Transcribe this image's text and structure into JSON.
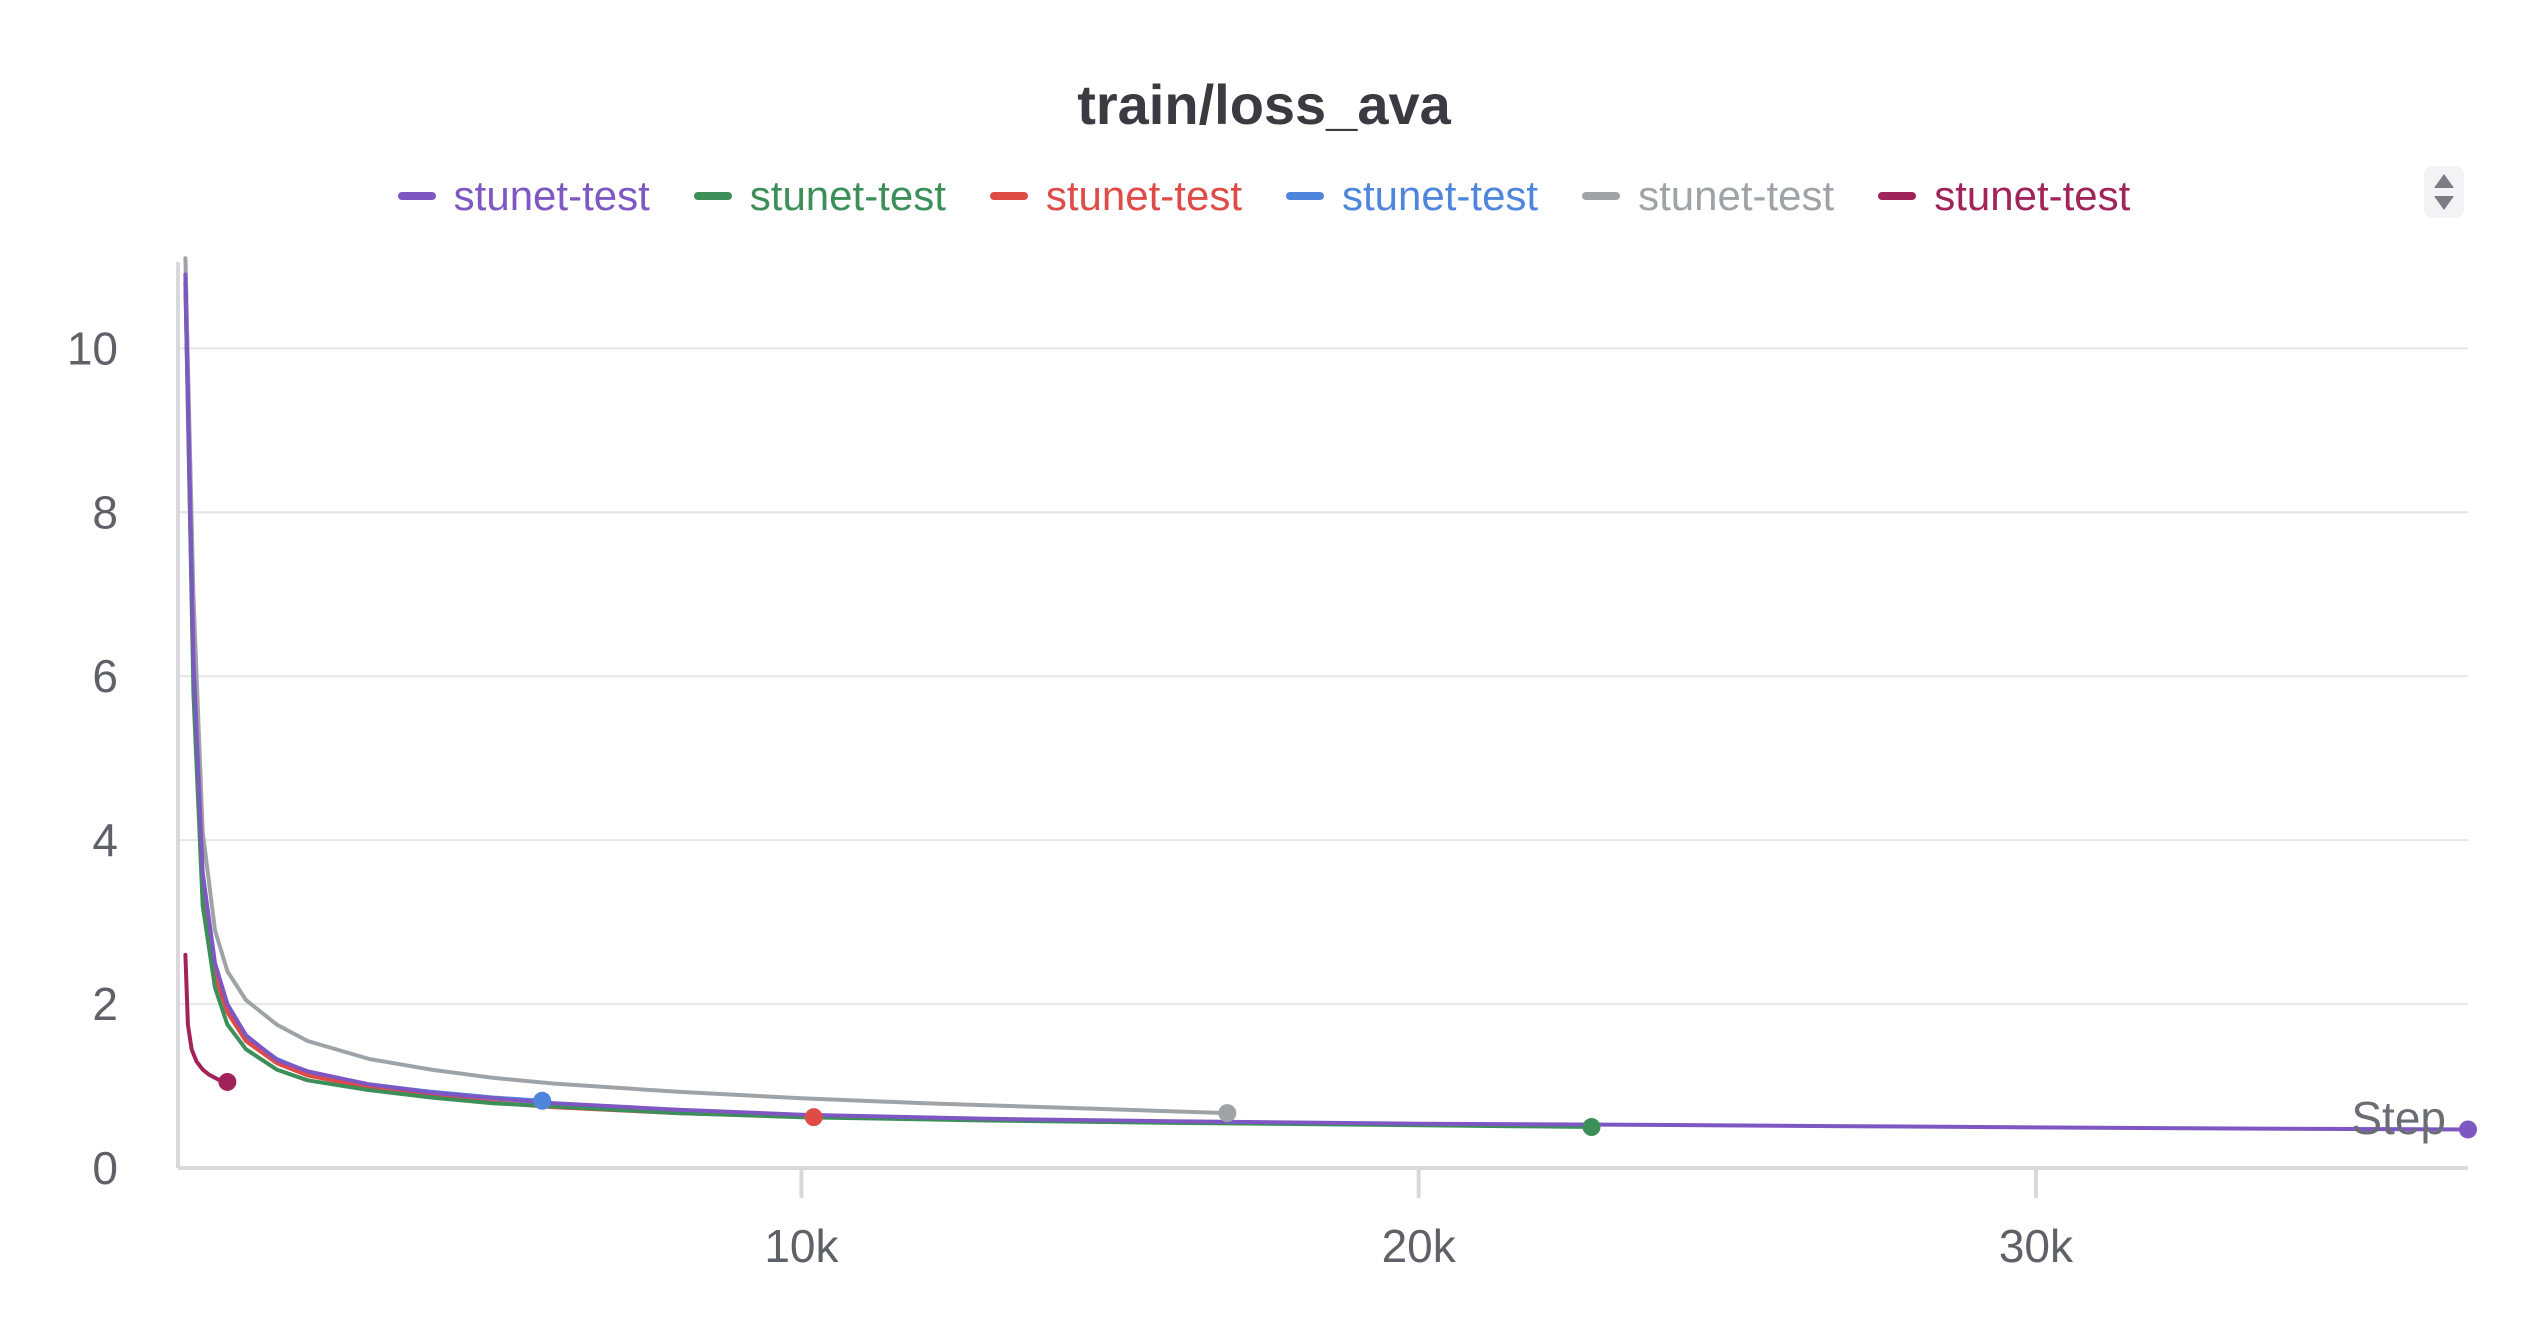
{
  "chart_data": {
    "type": "line",
    "title": "train/loss_ava",
    "xlabel": "Step",
    "ylabel": "",
    "xlim": [
      -100,
      37000
    ],
    "ylim": [
      0,
      11.2
    ],
    "x_ticks": [
      10000,
      20000,
      30000
    ],
    "x_tick_labels": [
      "10k",
      "20k",
      "30k"
    ],
    "y_ticks": [
      0,
      2,
      4,
      6,
      8,
      10
    ],
    "y_tick_labels": [
      "0",
      "2",
      "4",
      "6",
      "8",
      "10"
    ],
    "grid": true,
    "legend_position": "top",
    "series": [
      {
        "name": "stunet-test",
        "color": "#7e57c2",
        "x": [
          20,
          150,
          300,
          500,
          700,
          1000,
          1500,
          2000,
          3000,
          4000,
          5000,
          6000,
          8000,
          10000,
          13000,
          16000,
          20000,
          23000,
          27000,
          31000,
          34000,
          37000
        ],
        "y": [
          10.9,
          6.2,
          3.6,
          2.5,
          2.0,
          1.62,
          1.32,
          1.18,
          1.02,
          0.92,
          0.85,
          0.79,
          0.71,
          0.65,
          0.6,
          0.57,
          0.54,
          0.53,
          0.51,
          0.49,
          0.48,
          0.47
        ]
      },
      {
        "name": "stunet-test",
        "color": "#3c8f58",
        "x": [
          20,
          150,
          300,
          500,
          700,
          1000,
          1500,
          2000,
          3000,
          4000,
          5000,
          6000,
          8000,
          10000,
          13000,
          16000,
          19000,
          22800
        ],
        "y": [
          10.8,
          5.8,
          3.2,
          2.2,
          1.75,
          1.45,
          1.2,
          1.07,
          0.95,
          0.86,
          0.79,
          0.75,
          0.67,
          0.62,
          0.58,
          0.55,
          0.53,
          0.5
        ]
      },
      {
        "name": "stunet-test",
        "color": "#df4b47",
        "x": [
          20,
          150,
          300,
          500,
          700,
          1000,
          1500,
          2000,
          3000,
          4000,
          5000,
          6000,
          8000,
          10200
        ],
        "y": [
          10.8,
          6.0,
          3.4,
          2.35,
          1.9,
          1.55,
          1.28,
          1.13,
          0.98,
          0.88,
          0.8,
          0.74,
          0.67,
          0.62
        ]
      },
      {
        "name": "stunet-test",
        "color": "#4e86dd",
        "x": [
          20,
          150,
          300,
          500,
          700,
          1000,
          1500,
          2000,
          3000,
          4000,
          5000,
          5800
        ],
        "y": [
          10.9,
          6.1,
          3.5,
          2.45,
          1.95,
          1.6,
          1.33,
          1.17,
          1.02,
          0.93,
          0.86,
          0.82
        ]
      },
      {
        "name": "stunet-test",
        "color": "#9ea3a8",
        "x": [
          20,
          150,
          300,
          500,
          700,
          1000,
          1500,
          2000,
          3000,
          4000,
          5000,
          6000,
          8000,
          10000,
          12000,
          14000,
          16900
        ],
        "y": [
          11.1,
          7.0,
          4.1,
          2.9,
          2.4,
          2.05,
          1.75,
          1.55,
          1.33,
          1.2,
          1.1,
          1.03,
          0.93,
          0.85,
          0.79,
          0.74,
          0.67
        ]
      },
      {
        "name": "stunet-test",
        "color": "#a0245a",
        "x": [
          20,
          60,
          120,
          200,
          300,
          400,
          500,
          600,
          700
        ],
        "y": [
          2.6,
          1.75,
          1.45,
          1.3,
          1.2,
          1.14,
          1.1,
          1.06,
          1.05
        ]
      }
    ]
  }
}
